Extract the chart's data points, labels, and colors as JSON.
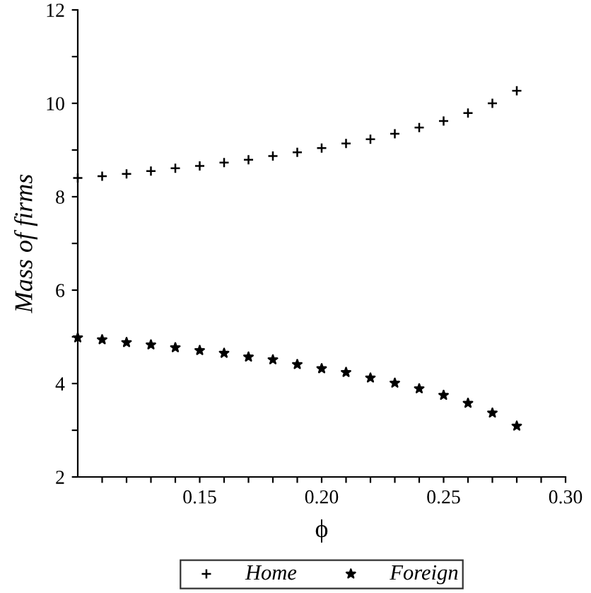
{
  "chart_data": {
    "type": "scatter",
    "xlabel": "ϕ",
    "ylabel": "Mass of firms",
    "x": [
      0.1,
      0.11,
      0.12,
      0.13,
      0.14,
      0.15,
      0.16,
      0.17,
      0.18,
      0.19,
      0.2,
      0.21,
      0.22,
      0.23,
      0.24,
      0.25,
      0.26,
      0.27,
      0.28
    ],
    "series": [
      {
        "name": "Home",
        "color": "#000000",
        "marker": "cross",
        "values": [
          8.4,
          8.44,
          8.49,
          8.55,
          8.61,
          8.66,
          8.73,
          8.79,
          8.87,
          8.95,
          9.04,
          9.14,
          9.23,
          9.35,
          9.48,
          9.62,
          9.79,
          10.0,
          10.27
        ]
      },
      {
        "name": "Foreign",
        "color": "#000000",
        "marker": "star",
        "values": [
          4.98,
          4.94,
          4.88,
          4.83,
          4.77,
          4.71,
          4.65,
          4.57,
          4.51,
          4.41,
          4.32,
          4.24,
          4.12,
          4.01,
          3.89,
          3.75,
          3.58,
          3.37,
          3.09
        ]
      }
    ],
    "xlim": [
      0.1,
      0.3
    ],
    "xticks": [
      {
        "value": 0.11,
        "label": null
      },
      {
        "value": 0.12,
        "label": null
      },
      {
        "value": 0.13,
        "label": null
      },
      {
        "value": 0.14,
        "label": null
      },
      {
        "value": 0.15,
        "label": "0.15"
      },
      {
        "value": 0.16,
        "label": null
      },
      {
        "value": 0.17,
        "label": null
      },
      {
        "value": 0.18,
        "label": null
      },
      {
        "value": 0.19,
        "label": null
      },
      {
        "value": 0.2,
        "label": "0.20"
      },
      {
        "value": 0.21,
        "label": null
      },
      {
        "value": 0.22,
        "label": null
      },
      {
        "value": 0.23,
        "label": null
      },
      {
        "value": 0.24,
        "label": null
      },
      {
        "value": 0.25,
        "label": "0.25"
      },
      {
        "value": 0.26,
        "label": null
      },
      {
        "value": 0.27,
        "label": null
      },
      {
        "value": 0.28,
        "label": null
      },
      {
        "value": 0.29,
        "label": null
      },
      {
        "value": 0.3,
        "label": "0.30"
      }
    ],
    "ylim": [
      2,
      12
    ],
    "yticks": [
      2,
      {
        "value": 3,
        "label": null
      },
      4,
      {
        "value": 5,
        "label": null
      },
      6,
      {
        "value": 7,
        "label": null
      },
      8,
      {
        "value": 9,
        "label": null
      },
      10,
      {
        "value": 11,
        "label": null
      },
      12
    ],
    "grid": false,
    "legend": "bottom"
  }
}
